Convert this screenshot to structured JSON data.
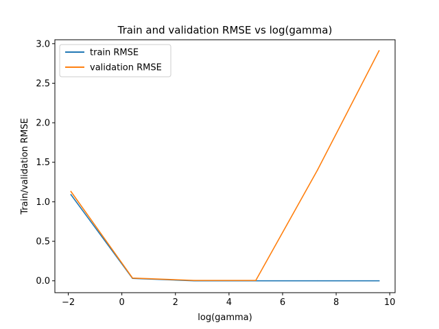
{
  "chart_data": {
    "type": "line",
    "title": "Train and validation RMSE vs log(gamma)",
    "xlabel": "log(gamma)",
    "ylabel": "Train/validation RMSE",
    "xlim": [
      -2.5,
      10.2
    ],
    "ylim": [
      -0.15,
      3.05
    ],
    "xticks": [
      -2,
      0,
      2,
      4,
      6,
      8,
      10
    ],
    "xtick_labels": [
      "−2",
      "0",
      "2",
      "4",
      "6",
      "8",
      "10"
    ],
    "yticks": [
      0.0,
      0.5,
      1.0,
      1.5,
      2.0,
      2.5,
      3.0
    ],
    "ytick_labels": [
      "0.0",
      "0.5",
      "1.0",
      "1.5",
      "2.0",
      "2.5",
      "3.0"
    ],
    "grid": false,
    "legend_position": "top-left",
    "series": [
      {
        "name": "train RMSE",
        "color": "#1f77b4",
        "x": [
          -1.9,
          0.4,
          2.7,
          5.0,
          7.3,
          9.6
        ],
        "y": [
          1.09,
          0.03,
          0.0,
          0.0,
          0.0,
          0.0
        ]
      },
      {
        "name": "validation RMSE",
        "color": "#ff7f0e",
        "x": [
          -1.9,
          0.4,
          2.7,
          5.0,
          7.3,
          9.6
        ],
        "y": [
          1.13,
          0.035,
          0.005,
          0.005,
          1.4,
          2.91
        ]
      }
    ]
  }
}
